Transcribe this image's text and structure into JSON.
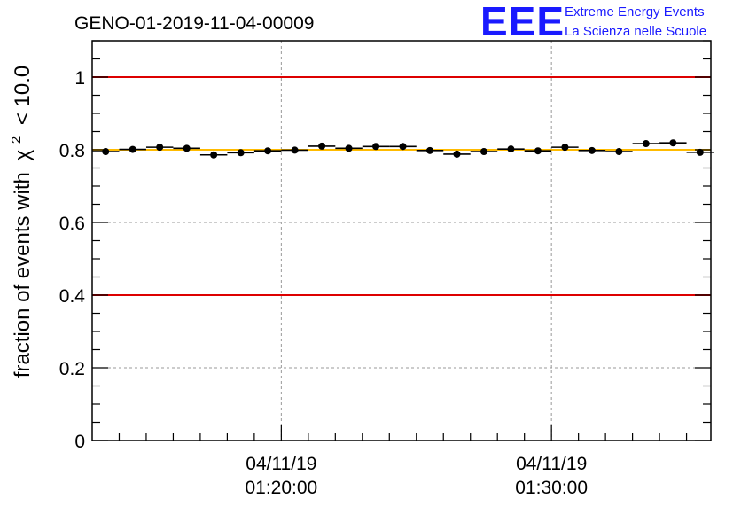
{
  "chart_data": {
    "type": "scatter",
    "title": "GENO-01-2019-11-04-00009",
    "ylabel_prefix": "fraction of events with",
    "ylabel_symbol": "χ",
    "ylabel_exponent": "2",
    "ylabel_suffix": "< 10.0",
    "xlabel": "",
    "ylim": [
      0,
      1.1
    ],
    "y_ticks": [
      0,
      0.2,
      0.4,
      0.6,
      0.8,
      1
    ],
    "y_tick_labels": [
      "0",
      "0.2",
      "0.4",
      "0.6",
      "0.8",
      "1"
    ],
    "x_unit": "minutes since 01:13",
    "xlim": [
      0,
      22.9
    ],
    "x_major_ticks": [
      {
        "x": 7,
        "date": "04/11/19",
        "time": "01:20:00"
      },
      {
        "x": 17,
        "date": "04/11/19",
        "time": "01:30:00"
      }
    ],
    "x_minor_ticks": [
      1,
      2,
      3,
      4,
      5,
      6,
      8,
      9,
      10,
      11,
      12,
      13,
      14,
      15,
      16,
      18,
      19,
      20,
      21,
      22
    ],
    "reference_lines": [
      {
        "y": 1.0,
        "color": "#dd0000"
      },
      {
        "y": 0.4,
        "color": "#dd0000"
      },
      {
        "y": 0.8,
        "color": "#ffbb00"
      }
    ],
    "series": [
      {
        "name": "fraction",
        "x": [
          0.5,
          1.5,
          2.5,
          3.5,
          4.5,
          5.5,
          6.5,
          7.5,
          8.5,
          9.5,
          10.5,
          11.5,
          12.5,
          13.5,
          14.5,
          15.5,
          16.5,
          17.5,
          18.5,
          19.5,
          20.5,
          21.5,
          22.5
        ],
        "values": [
          0.795,
          0.801,
          0.807,
          0.804,
          0.786,
          0.792,
          0.797,
          0.799,
          0.81,
          0.804,
          0.809,
          0.809,
          0.798,
          0.788,
          0.795,
          0.802,
          0.797,
          0.807,
          0.798,
          0.795,
          0.817,
          0.819,
          0.793
        ],
        "x_half_width": 0.5
      }
    ]
  },
  "logo": {
    "letters": "EEE",
    "line1": "Extreme Energy Events",
    "line2": "La Scienza nelle Scuole"
  },
  "colors": {
    "axis": "#000000",
    "grid": "#999999",
    "marker": "#000000",
    "logo": "#1a1aff"
  }
}
